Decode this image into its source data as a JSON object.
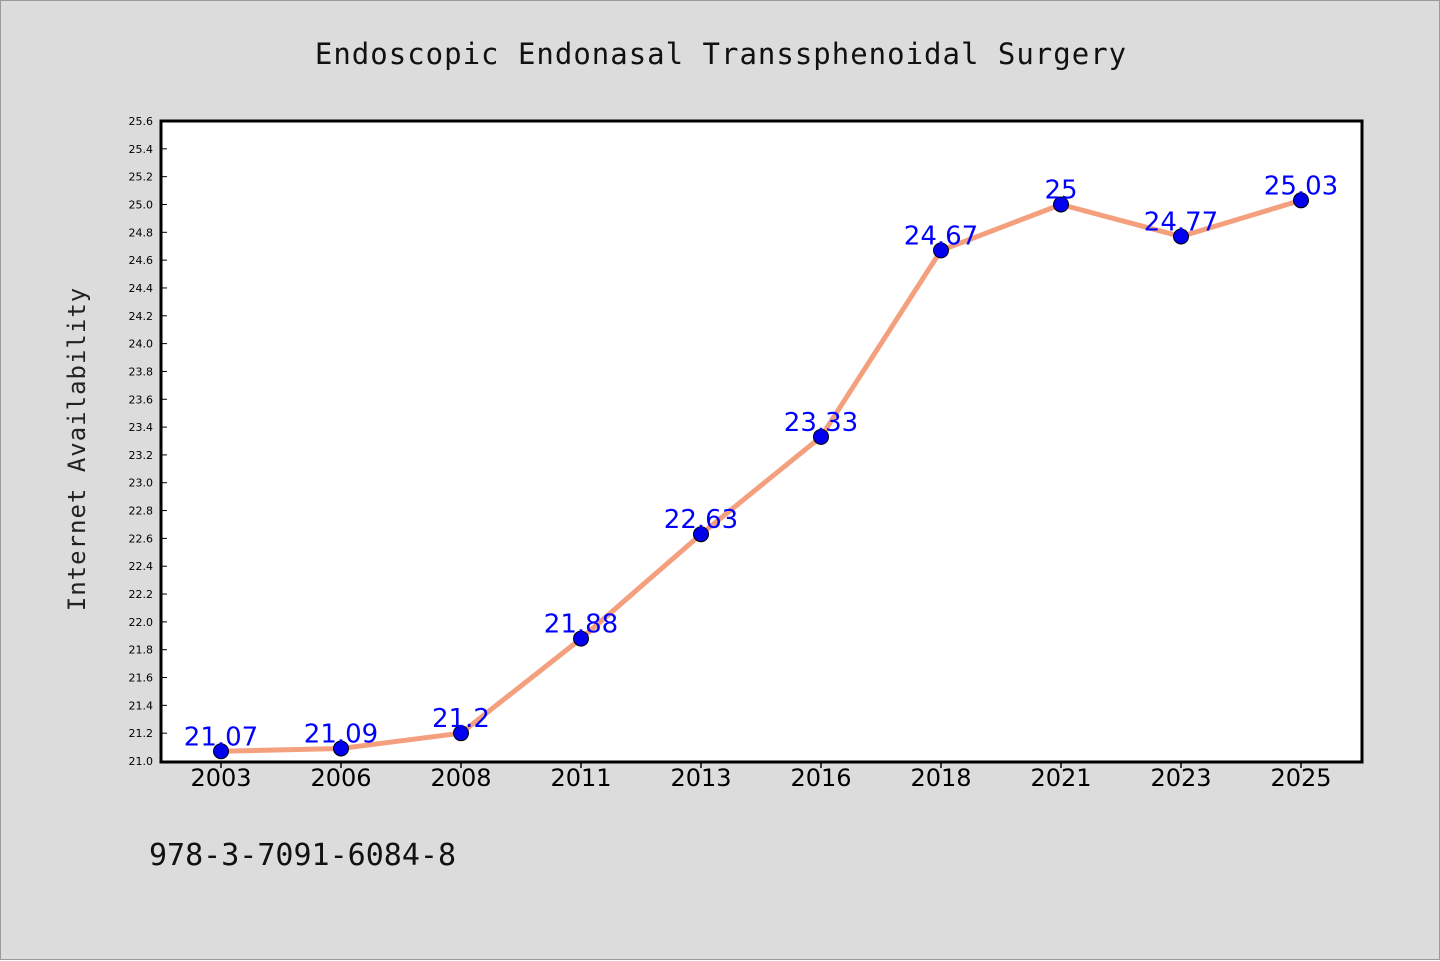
{
  "chart_data": {
    "type": "line",
    "title": "Endoscopic Endonasal Transsphenoidal Surgery",
    "xlabel": "",
    "ylabel": "Internet Availability",
    "x": [
      "2003",
      "2006",
      "2008",
      "2011",
      "2013",
      "2016",
      "2018",
      "2021",
      "2023",
      "2025"
    ],
    "series": [
      {
        "values": [
          21.07,
          21.09,
          21.2,
          21.88,
          22.63,
          23.33,
          24.67,
          25,
          24.77,
          25.03
        ],
        "data_labels": [
          "21.07",
          "21.09",
          "21.2",
          "21.88",
          "22.63",
          "23.33",
          "24.67",
          "25",
          "24.77",
          "25.03"
        ]
      }
    ],
    "ylim": [
      21.0,
      25.6
    ],
    "yticks": [
      "21.0",
      "21.2",
      "21.4",
      "21.6",
      "21.8",
      "22.0",
      "22.2",
      "22.4",
      "22.6",
      "22.8",
      "23.0",
      "23.2",
      "23.4",
      "23.6",
      "23.8",
      "24.0",
      "24.2",
      "24.4",
      "24.6",
      "24.8",
      "25.0",
      "25.2",
      "25.4",
      "25.6"
    ],
    "grid": false,
    "legend": "none",
    "colors": {
      "line": "#f4a07e",
      "marker": "#0000ee",
      "data_label": "#0000ff",
      "background": "#dcdcdc",
      "plot_area": "#ffffff"
    }
  },
  "footer_note": "978-3-7091-6084-8"
}
